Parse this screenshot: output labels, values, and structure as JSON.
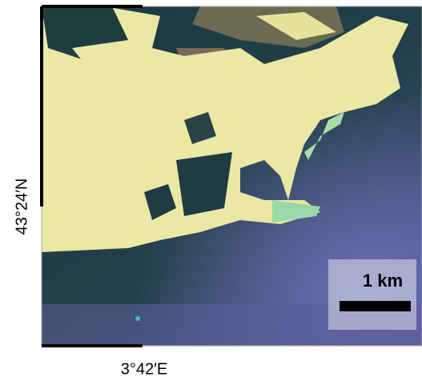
{
  "map": {
    "lat_label": "43°24′N",
    "lon_label": "3°42′E",
    "scale_bar": {
      "label": "1 km"
    }
  }
}
